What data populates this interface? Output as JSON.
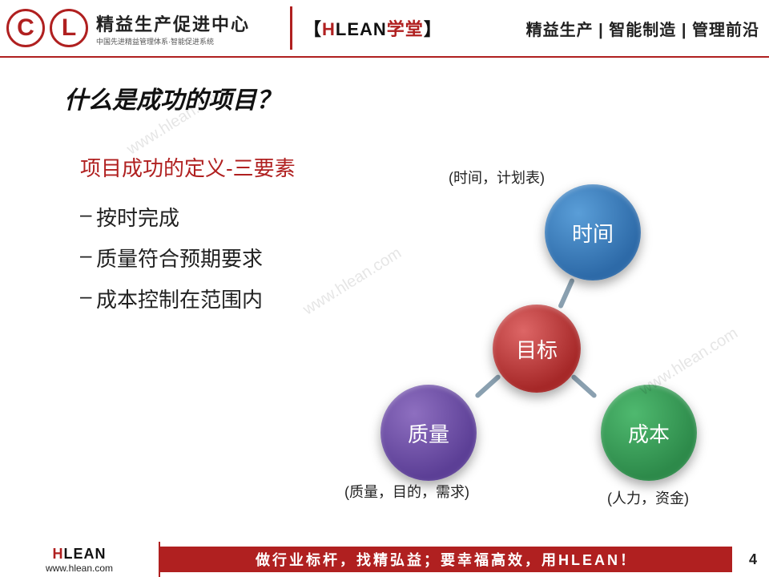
{
  "header": {
    "logo_main": "精益生产促进中心",
    "logo_sub": "中国先进精益管理体系·智能促进系统",
    "brand_bracket_l": "【",
    "brand_part1": "H",
    "brand_part2": "LEAN",
    "brand_part3": "学堂",
    "brand_bracket_r": "】",
    "tagline": "精益生产 | 智能制造 | 管理前沿"
  },
  "title": "什么是成功的项目？",
  "subtitle": "项目成功的定义-三要素",
  "bullets": [
    "按时完成",
    "质量符合预期要求",
    "成本控制在范围内"
  ],
  "diagram": {
    "center": {
      "label": "目标",
      "color": "#a62828"
    },
    "top": {
      "label": "时间",
      "color": "#2d6aa8",
      "caption": "(时间，计划表)"
    },
    "right": {
      "label": "成本",
      "color": "#2d8a4a",
      "caption": "(人力，资金)"
    },
    "left": {
      "label": "质量",
      "color": "#5c3f96",
      "caption": "(质量，目的，需求)"
    }
  },
  "watermark": "www.hlean.com",
  "footer": {
    "logo_h": "H",
    "logo_lean": "LEAN",
    "url": "www.hlean.com",
    "slogan": "做行业标杆，找精弘益；要幸福高效，用HLEAN！",
    "page": "4"
  }
}
